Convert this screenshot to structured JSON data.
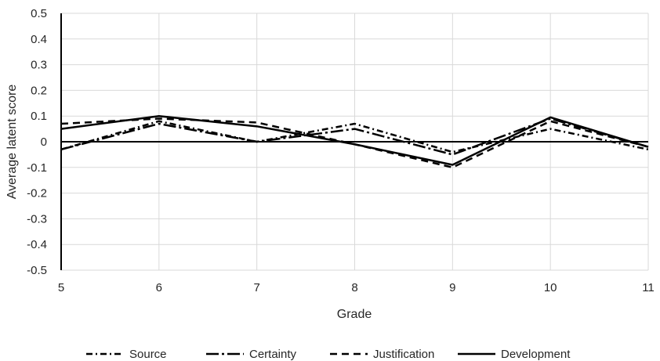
{
  "chart_data": {
    "type": "line",
    "title": "",
    "xlabel": "Grade",
    "ylabel": "Average latent score",
    "x": [
      5,
      6,
      7,
      8,
      9,
      10,
      11
    ],
    "xlim": [
      5,
      11
    ],
    "ylim": [
      -0.5,
      0.5
    ],
    "y_ticks": [
      "0.5",
      "0.4",
      "0.3",
      "0.2",
      "0.1",
      "0",
      "-0.1",
      "-0.2",
      "-0.3",
      "-0.4",
      "-0.5"
    ],
    "x_ticks": [
      "5",
      "6",
      "7",
      "8",
      "9",
      "10",
      "11"
    ],
    "grid": true,
    "legend_position": "bottom",
    "series": [
      {
        "name": "Source",
        "dash": "dash-dot",
        "color": "#000000",
        "values": [
          -0.03,
          0.08,
          0.0,
          0.07,
          -0.04,
          0.05,
          -0.03
        ]
      },
      {
        "name": "Certainty",
        "dash": "long-dash-dot",
        "color": "#000000",
        "values": [
          -0.03,
          0.07,
          0.0,
          0.05,
          -0.05,
          0.09,
          -0.02
        ]
      },
      {
        "name": "Justification",
        "dash": "dash",
        "color": "#000000",
        "values": [
          0.07,
          0.09,
          0.075,
          -0.01,
          -0.1,
          0.08,
          -0.02
        ]
      },
      {
        "name": "Development",
        "dash": "solid",
        "color": "#000000",
        "values": [
          0.05,
          0.1,
          0.06,
          -0.01,
          -0.09,
          0.095,
          -0.02
        ]
      }
    ]
  }
}
